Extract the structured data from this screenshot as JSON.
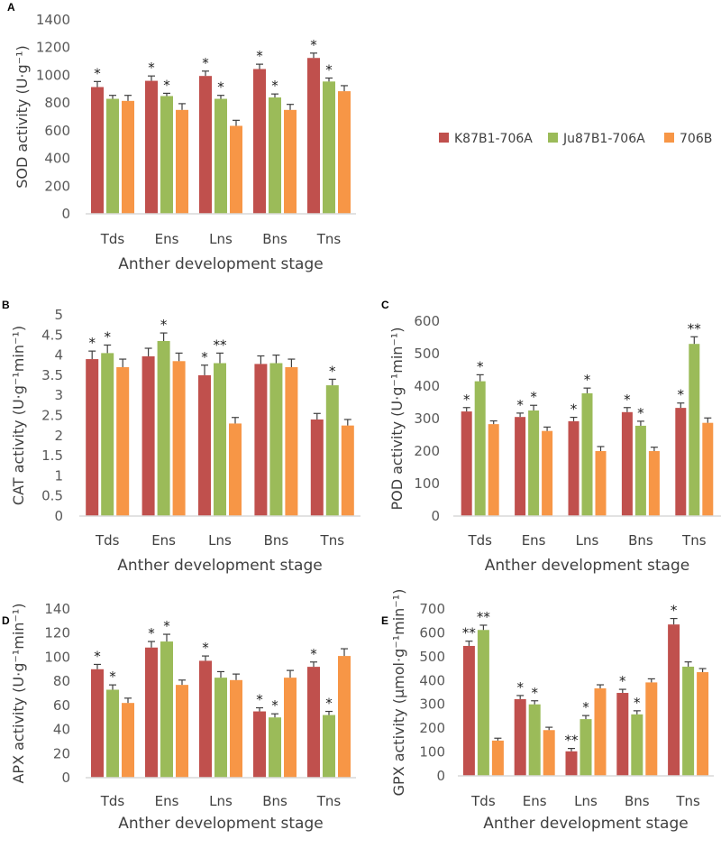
{
  "colors": {
    "K87B1-706A": "#c0504d",
    "Ju87B1-706A": "#9bbb59",
    "706B": "#f79646",
    "axis": "#d9d9d9",
    "error": "#404040"
  },
  "legend": [
    "K87B1-706A",
    "Ju87B1-706A",
    "706B"
  ],
  "chart_data": [
    {
      "panel": "A",
      "type": "bar",
      "ylabel": "SOD activity (U·g⁻¹)",
      "xlabel": "Anther development stage",
      "categories": [
        "Tds",
        "Ens",
        "Lns",
        "Bns",
        "Tns"
      ],
      "ylim": [
        0,
        1400
      ],
      "yticks": [
        0,
        200,
        400,
        600,
        800,
        1000,
        1200,
        1400
      ],
      "series": [
        {
          "name": "K87B1-706A",
          "values": [
            915,
            960,
            995,
            1045,
            1125
          ],
          "errors": [
            40,
            35,
            35,
            35,
            35
          ],
          "sig": [
            "*",
            "*",
            "*",
            "*",
            "*"
          ]
        },
        {
          "name": "Ju87B1-706A",
          "values": [
            830,
            850,
            830,
            840,
            955
          ],
          "errors": [
            25,
            20,
            25,
            25,
            25
          ],
          "sig": [
            "",
            "*",
            "*",
            "*",
            "*"
          ]
        },
        {
          "name": "706B",
          "values": [
            815,
            750,
            635,
            750,
            885
          ],
          "errors": [
            40,
            45,
            40,
            40,
            40
          ],
          "sig": [
            "",
            "",
            "",
            "",
            ""
          ]
        }
      ]
    },
    {
      "panel": "B",
      "type": "bar",
      "ylabel": "CAT activity (U·g⁻¹min⁻¹)",
      "xlabel": "Anther development stage",
      "categories": [
        "Tds",
        "Ens",
        "Lns",
        "Bns",
        "Tns"
      ],
      "ylim": [
        0,
        5
      ],
      "yticks": [
        0,
        0.5,
        1,
        1.5,
        2,
        2.5,
        3,
        3.5,
        4,
        4.5,
        5
      ],
      "series": [
        {
          "name": "K87B1-706A",
          "values": [
            3.9,
            3.97,
            3.5,
            3.78,
            2.4
          ],
          "errors": [
            0.2,
            0.2,
            0.25,
            0.2,
            0.15
          ],
          "sig": [
            "*",
            "",
            "*",
            "",
            ""
          ]
        },
        {
          "name": "Ju87B1-706A",
          "values": [
            4.05,
            4.35,
            3.8,
            3.8,
            3.25
          ],
          "errors": [
            0.2,
            0.2,
            0.25,
            0.2,
            0.15
          ],
          "sig": [
            "*",
            "*",
            "**",
            "",
            "*"
          ]
        },
        {
          "name": "706B",
          "values": [
            3.7,
            3.85,
            2.3,
            3.7,
            2.25
          ],
          "errors": [
            0.2,
            0.2,
            0.15,
            0.2,
            0.15
          ],
          "sig": [
            "",
            "",
            "",
            "",
            ""
          ]
        }
      ]
    },
    {
      "panel": "C",
      "type": "bar",
      "ylabel": "POD activity (U·g⁻¹min⁻¹)",
      "xlabel": "Anther development stage",
      "categories": [
        "Tds",
        "Ens",
        "Lns",
        "Bns",
        "Tns"
      ],
      "ylim": [
        0,
        600
      ],
      "yticks": [
        0,
        100,
        200,
        300,
        400,
        500,
        600
      ],
      "series": [
        {
          "name": "K87B1-706A",
          "values": [
            322,
            305,
            292,
            320,
            333
          ],
          "errors": [
            12,
            12,
            12,
            14,
            15
          ],
          "sig": [
            "*",
            "*",
            "*",
            "*",
            "*"
          ]
        },
        {
          "name": "Ju87B1-706A",
          "values": [
            415,
            325,
            378,
            278,
            530
          ],
          "errors": [
            20,
            16,
            16,
            14,
            22
          ],
          "sig": [
            "*",
            "*",
            "*",
            "*",
            "**"
          ]
        },
        {
          "name": "706B",
          "values": [
            283,
            262,
            200,
            200,
            287
          ],
          "errors": [
            10,
            12,
            14,
            12,
            15
          ],
          "sig": [
            "",
            "",
            "",
            "",
            ""
          ]
        }
      ]
    },
    {
      "panel": "D",
      "type": "bar",
      "ylabel": "APX activity (U·g⁻¹min⁻¹)",
      "xlabel": "Anther development stage",
      "categories": [
        "Tds",
        "Ens",
        "Lns",
        "Bns",
        "Tns"
      ],
      "ylim": [
        0,
        140
      ],
      "yticks": [
        0,
        20,
        40,
        60,
        80,
        100,
        120,
        140
      ],
      "series": [
        {
          "name": "K87B1-706A",
          "values": [
            90,
            108,
            97,
            55,
            92
          ],
          "errors": [
            4,
            5,
            4,
            3,
            4
          ],
          "sig": [
            "*",
            "*",
            "*",
            "*",
            "*"
          ]
        },
        {
          "name": "Ju87B1-706A",
          "values": [
            73,
            113,
            83,
            50,
            52
          ],
          "errors": [
            4,
            6,
            5,
            3,
            3
          ],
          "sig": [
            "*",
            "*",
            "",
            "*",
            "*"
          ]
        },
        {
          "name": "706B",
          "values": [
            62,
            77,
            81,
            83,
            101
          ],
          "errors": [
            4,
            4,
            5,
            6,
            6
          ],
          "sig": [
            "",
            "",
            "",
            "",
            ""
          ]
        }
      ]
    },
    {
      "panel": "E",
      "type": "bar",
      "ylabel": "GPX activity (μmol·g⁻¹min⁻¹)",
      "xlabel": "Anther development stage",
      "categories": [
        "Tds",
        "Ens",
        "Lns",
        "Bns",
        "Tns"
      ],
      "ylim": [
        0,
        700
      ],
      "yticks": [
        0,
        100,
        200,
        300,
        400,
        500,
        600,
        700
      ],
      "series": [
        {
          "name": "K87B1-706A",
          "values": [
            545,
            322,
            103,
            348,
            635
          ],
          "errors": [
            20,
            15,
            12,
            15,
            25
          ],
          "sig": [
            "**",
            "*",
            "**",
            "*",
            "*"
          ]
        },
        {
          "name": "Ju87B1-706A",
          "values": [
            612,
            300,
            238,
            258,
            458
          ],
          "errors": [
            20,
            15,
            15,
            15,
            20
          ],
          "sig": [
            "**",
            "*",
            "*",
            "*",
            ""
          ]
        },
        {
          "name": "706B",
          "values": [
            148,
            192,
            367,
            392,
            435
          ],
          "errors": [
            10,
            12,
            15,
            15,
            15
          ],
          "sig": [
            "",
            "",
            "",
            "",
            ""
          ]
        }
      ]
    }
  ]
}
